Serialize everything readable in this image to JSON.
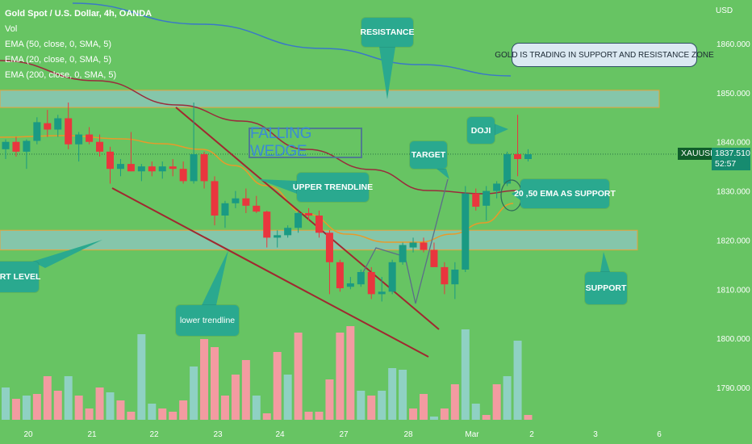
{
  "header": {
    "symbol_line": "Gold Spot / U.S. Dollar, 4h, OANDA",
    "vol_label": "Vol",
    "ema50_label": "EMA (50, close, 0, SMA, 5)",
    "ema20_label": "EMA (20, close, 0, SMA, 5)",
    "ema200_label": "EMA (200, close, 0, SMA, 5)"
  },
  "price_scale": {
    "currency": "USD"
  },
  "price_badge": {
    "symbol": "XAUUSD",
    "price": "1837.510",
    "countdown": "52:57"
  },
  "annotations": {
    "resistance": "RESISTANCE",
    "zone_note": "GOLD IS TRADING IN SUPPORT AND RESISTANCE ZONE",
    "doji": "DOJI",
    "target": "TARGET",
    "falling_wedge": "FALLING WEDGE",
    "upper_trendline": "UPPER TRENDLINE",
    "ema_support": "20 ,50 EMA AS SUPPORT",
    "support_level": "ORT LEVEL",
    "support": "SUPPORT",
    "lower_trendline": "lower trendline"
  },
  "colors": {
    "background": "#67c463",
    "bull": "#1a9a83",
    "bear": "#e9363e",
    "vol_bull": "#8fd1c3",
    "vol_bear": "#f39ba1",
    "zone_fill": "#8fc7c2",
    "zone_border": "#e8a23a",
    "ema20": "#e89a2a",
    "ema50": "#9a2b3c",
    "ema200": "#3a78c8",
    "trendline": "#a02830",
    "callout": "#2aa98f"
  },
  "chart_data": {
    "type": "candlestick",
    "ylim": [
      1785,
      1665
    ],
    "y_ticks": [
      "1860.000",
      "1850.000",
      "1840.000",
      "1830.000",
      "1820.000",
      "1810.000",
      "1800.000",
      "1790.000"
    ],
    "x_ticks": [
      "20",
      "21",
      "22",
      "23",
      "24",
      "27",
      "28",
      "Mar",
      "2",
      "3",
      "6"
    ],
    "resistance_zone": [
      1850.5,
      1847
    ],
    "support_zone": [
      1822,
      1818
    ],
    "candles": [
      {
        "o": 1838.5,
        "h": 1840.5,
        "l": 1836.5,
        "c": 1840.0
      },
      {
        "o": 1840.0,
        "h": 1841.0,
        "l": 1837.0,
        "c": 1838.0
      },
      {
        "o": 1838.0,
        "h": 1840.5,
        "l": 1834.5,
        "c": 1840.2
      },
      {
        "o": 1840.2,
        "h": 1845.0,
        "l": 1839.5,
        "c": 1844.0
      },
      {
        "o": 1843.8,
        "h": 1846.5,
        "l": 1841.0,
        "c": 1842.5
      },
      {
        "o": 1842.5,
        "h": 1845.5,
        "l": 1841.0,
        "c": 1844.8
      },
      {
        "o": 1844.8,
        "h": 1848.0,
        "l": 1838.5,
        "c": 1839.5
      },
      {
        "o": 1839.5,
        "h": 1842.0,
        "l": 1836.0,
        "c": 1841.5
      },
      {
        "o": 1841.5,
        "h": 1843.0,
        "l": 1839.5,
        "c": 1840.0
      },
      {
        "o": 1840.0,
        "h": 1841.5,
        "l": 1837.0,
        "c": 1838.0
      },
      {
        "o": 1838.0,
        "h": 1839.0,
        "l": 1831.5,
        "c": 1834.5
      },
      {
        "o": 1834.5,
        "h": 1836.5,
        "l": 1833.0,
        "c": 1835.5
      },
      {
        "o": 1835.5,
        "h": 1842.0,
        "l": 1834.0,
        "c": 1834.0
      },
      {
        "o": 1834.0,
        "h": 1835.5,
        "l": 1832.0,
        "c": 1835.0
      },
      {
        "o": 1835.0,
        "h": 1836.0,
        "l": 1833.0,
        "c": 1834.0
      },
      {
        "o": 1834.0,
        "h": 1836.0,
        "l": 1832.5,
        "c": 1835.0
      },
      {
        "o": 1835.0,
        "h": 1836.5,
        "l": 1833.0,
        "c": 1834.5
      },
      {
        "o": 1834.5,
        "h": 1836.0,
        "l": 1831.5,
        "c": 1832.0
      },
      {
        "o": 1832.0,
        "h": 1848.0,
        "l": 1831.5,
        "c": 1837.5
      },
      {
        "o": 1837.5,
        "h": 1838.0,
        "l": 1830.5,
        "c": 1832.0
      },
      {
        "o": 1832.0,
        "h": 1833.0,
        "l": 1823.0,
        "c": 1825.0
      },
      {
        "o": 1825.0,
        "h": 1828.0,
        "l": 1822.5,
        "c": 1827.5
      },
      {
        "o": 1827.5,
        "h": 1830.0,
        "l": 1826.5,
        "c": 1828.5
      },
      {
        "o": 1828.5,
        "h": 1830.5,
        "l": 1825.5,
        "c": 1827.0
      },
      {
        "o": 1827.0,
        "h": 1829.0,
        "l": 1825.5,
        "c": 1825.8
      },
      {
        "o": 1825.8,
        "h": 1826.0,
        "l": 1818.5,
        "c": 1820.5
      },
      {
        "o": 1820.5,
        "h": 1822.0,
        "l": 1818.5,
        "c": 1821.0
      },
      {
        "o": 1821.0,
        "h": 1823.0,
        "l": 1820.5,
        "c": 1822.5
      },
      {
        "o": 1822.5,
        "h": 1826.0,
        "l": 1821.5,
        "c": 1825.5
      },
      {
        "o": 1825.5,
        "h": 1826.5,
        "l": 1824.0,
        "c": 1825.0
      },
      {
        "o": 1825.0,
        "h": 1826.0,
        "l": 1820.5,
        "c": 1821.5
      },
      {
        "o": 1821.5,
        "h": 1822.0,
        "l": 1809.0,
        "c": 1815.5
      },
      {
        "o": 1815.5,
        "h": 1816.0,
        "l": 1809.5,
        "c": 1810.2
      },
      {
        "o": 1810.5,
        "h": 1812.5,
        "l": 1810.0,
        "c": 1811.2
      },
      {
        "o": 1811.0,
        "h": 1814.0,
        "l": 1810.5,
        "c": 1813.5
      },
      {
        "o": 1813.5,
        "h": 1814.5,
        "l": 1808.0,
        "c": 1809.0
      },
      {
        "o": 1809.0,
        "h": 1812.5,
        "l": 1807.5,
        "c": 1809.5
      },
      {
        "o": 1809.5,
        "h": 1816.0,
        "l": 1809.0,
        "c": 1815.5
      },
      {
        "o": 1815.5,
        "h": 1819.5,
        "l": 1815.0,
        "c": 1819.0
      },
      {
        "o": 1818.5,
        "h": 1820.5,
        "l": 1817.5,
        "c": 1819.5
      },
      {
        "o": 1819.5,
        "h": 1820.5,
        "l": 1817.5,
        "c": 1818.0
      },
      {
        "o": 1818.0,
        "h": 1819.5,
        "l": 1815.5,
        "c": 1814.5
      },
      {
        "o": 1814.5,
        "h": 1815.5,
        "l": 1809.0,
        "c": 1811.0
      },
      {
        "o": 1811.0,
        "h": 1815.5,
        "l": 1808.0,
        "c": 1814.0
      },
      {
        "o": 1814.0,
        "h": 1831.0,
        "l": 1813.5,
        "c": 1829.5
      },
      {
        "o": 1829.5,
        "h": 1830.5,
        "l": 1826.0,
        "c": 1826.8
      },
      {
        "o": 1827.0,
        "h": 1831.0,
        "l": 1824.0,
        "c": 1830.0
      },
      {
        "o": 1830.0,
        "h": 1832.0,
        "l": 1828.5,
        "c": 1831.5
      },
      {
        "o": 1831.5,
        "h": 1838.0,
        "l": 1831.0,
        "c": 1837.5
      },
      {
        "o": 1837.5,
        "h": 1845.5,
        "l": 1833.0,
        "c": 1836.5
      },
      {
        "o": 1836.5,
        "h": 1838.5,
        "l": 1836.0,
        "c": 1837.5
      }
    ],
    "volume_direction": [
      "up",
      "down",
      "up",
      "down",
      "down",
      "down",
      "up",
      "down",
      "down",
      "down",
      "up",
      "down",
      "down",
      "up",
      "up",
      "down",
      "down",
      "down",
      "up",
      "down",
      "down",
      "down",
      "down",
      "down",
      "up",
      "down",
      "down",
      "up",
      "down",
      "down",
      "down",
      "down",
      "down",
      "down",
      "up",
      "down",
      "up",
      "up",
      "up",
      "down",
      "down",
      "up",
      "down",
      "down",
      "up",
      "up",
      "down",
      "down",
      "up",
      "up",
      "down"
    ],
    "volume_relative": [
      0.2,
      0.13,
      0.15,
      0.16,
      0.27,
      0.18,
      0.27,
      0.15,
      0.07,
      0.2,
      0.17,
      0.12,
      0.05,
      0.53,
      0.1,
      0.07,
      0.05,
      0.12,
      0.33,
      0.5,
      0.45,
      0.15,
      0.28,
      0.37,
      0.15,
      0.04,
      0.42,
      0.28,
      0.54,
      0.05,
      0.05,
      0.25,
      0.54,
      0.58,
      0.18,
      0.15,
      0.18,
      0.32,
      0.31,
      0.07,
      0.16,
      0.02,
      0.07,
      0.22,
      0.56,
      0.1,
      0.03,
      0.22,
      0.27,
      0.49,
      0.03
    ]
  }
}
